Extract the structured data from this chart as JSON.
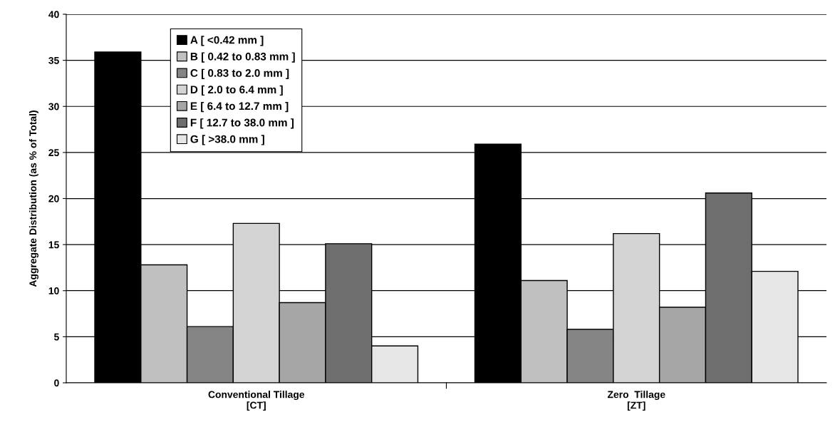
{
  "chart_data": {
    "type": "bar",
    "ylabel": "Aggregate Distribution (as % of Total)",
    "categories": [
      "Conventional Tillage\n[CT]",
      "Zero  Tillage\n[ZT]"
    ],
    "series": [
      {
        "name": "A [ <0.42 mm ]",
        "color": "#000000",
        "values": [
          35.9,
          25.9
        ]
      },
      {
        "name": "B [ 0.42 to 0.83 mm ]",
        "color": "#c0c0c0",
        "values": [
          12.8,
          11.1
        ]
      },
      {
        "name": "C [ 0.83 to 2.0 mm ]",
        "color": "#858585",
        "values": [
          6.1,
          5.8
        ]
      },
      {
        "name": "D [ 2.0 to 6.4 mm ]",
        "color": "#d4d4d4",
        "values": [
          17.3,
          16.2
        ]
      },
      {
        "name": "E [ 6.4 to 12.7 mm ]",
        "color": "#a6a6a6",
        "values": [
          8.7,
          8.2
        ]
      },
      {
        "name": "F [ 12.7 to 38.0 mm ]",
        "color": "#6e6e6e",
        "values": [
          15.1,
          20.6
        ]
      },
      {
        "name": "G [ >38.0 mm ]",
        "color": "#e6e6e6",
        "values": [
          4.0,
          12.1
        ]
      }
    ],
    "ylim": [
      0,
      40
    ],
    "yticks": [
      0,
      5,
      10,
      15,
      20,
      25,
      30,
      35,
      40
    ],
    "grid": "y",
    "legend": "top left"
  }
}
